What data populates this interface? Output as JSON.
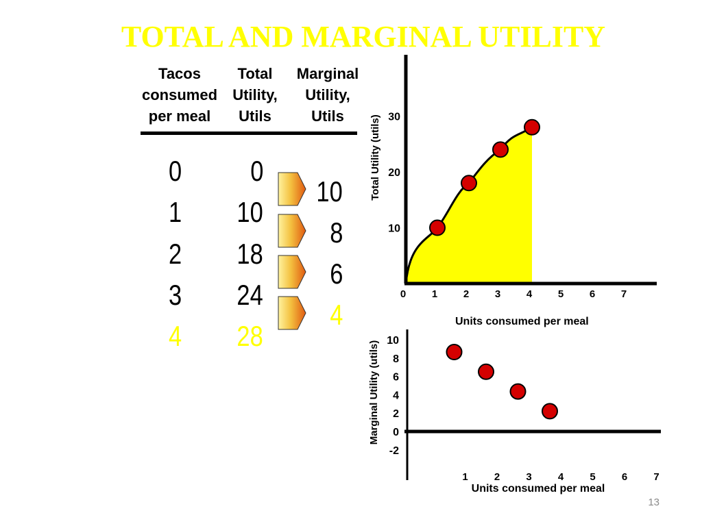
{
  "slide": {
    "title": "TOTAL AND MARGINAL UTILITY",
    "page_number": "13"
  },
  "table": {
    "headers": [
      "Tacos\nconsumed\nper meal",
      "Total\nUtility,\nUtils",
      "Marginal\nUtility,\nUtils"
    ],
    "rows": [
      {
        "tacos": "0",
        "total": "0",
        "highlight": false
      },
      {
        "tacos": "1",
        "total": "10",
        "highlight": false
      },
      {
        "tacos": "2",
        "total": "18",
        "highlight": false
      },
      {
        "tacos": "3",
        "total": "24",
        "highlight": false
      },
      {
        "tacos": "4",
        "total": "28",
        "highlight": true
      }
    ],
    "marginal": [
      {
        "value": "10",
        "highlight": false
      },
      {
        "value": "8",
        "highlight": false
      },
      {
        "value": "6",
        "highlight": false
      },
      {
        "value": "4",
        "highlight": true
      }
    ],
    "highlight_color": "#ffff00"
  },
  "chart_data": [
    {
      "type": "area",
      "ylabel": "Total Utility (utils)",
      "xlabel": "",
      "x_ticks": [
        "0",
        "1",
        "2",
        "3",
        "4",
        "5",
        "6",
        "7"
      ],
      "y_ticks": [
        "10",
        "20",
        "30"
      ],
      "xlim": [
        0,
        8
      ],
      "ylim": [
        0,
        33
      ],
      "x": [
        0,
        1,
        2,
        3,
        4
      ],
      "y": [
        0,
        10,
        18,
        24,
        28
      ],
      "marked_points": [
        1,
        2,
        3,
        4
      ],
      "fill_color": "#ffff00",
      "point_color": "#d40000"
    },
    {
      "type": "scatter",
      "ylabel": "Marginal Utility (utils)",
      "xlabel": "Units consumed per meal",
      "x_ticks": [
        "1",
        "2",
        "3",
        "4",
        "5",
        "6",
        "7"
      ],
      "y_ticks": [
        "10",
        "8",
        "6",
        "4",
        "2",
        "0",
        "-2"
      ],
      "xlim": [
        0.5,
        8
      ],
      "ylim": [
        -2,
        10
      ],
      "x": [
        1,
        2,
        3,
        4
      ],
      "y": [
        10,
        8,
        6,
        4
      ],
      "point_color": "#d40000"
    }
  ],
  "mid_label": "Units consumed per meal"
}
